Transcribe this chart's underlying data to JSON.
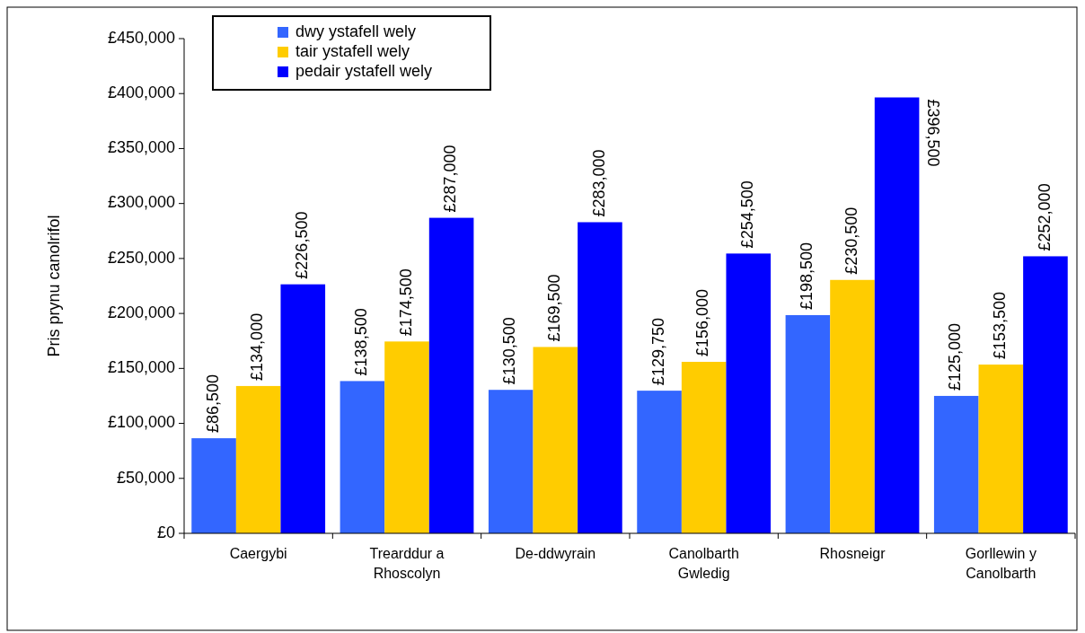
{
  "chart_data": {
    "type": "bar",
    "ylabel": "Pris prynu canolrifol",
    "categories": [
      "Caergybi",
      "Trearddur a Rhoscolyn",
      "De-ddwyrain",
      "Canolbarth Gwledig",
      "Rhosneigr",
      "Gorllewin y Canolbarth"
    ],
    "series": [
      {
        "name": "dwy ystafell wely",
        "color": "#3366ff",
        "values": [
          86500,
          138500,
          130500,
          129750,
          198500,
          125000
        ],
        "value_labels": [
          "£86,500",
          "£138,500",
          "£130,500",
          "£129,750",
          "£198,500",
          "£125,000"
        ]
      },
      {
        "name": "tair ystafell wely",
        "color": "#ffcc00",
        "values": [
          134000,
          174500,
          169500,
          156000,
          230500,
          153500
        ],
        "value_labels": [
          "£134,000",
          "£174,500",
          "£169,500",
          "£156,000",
          "£230,500",
          "£153,500"
        ]
      },
      {
        "name": "pedair ystafell wely",
        "color": "#0000ff",
        "values": [
          226500,
          287000,
          283000,
          254500,
          396500,
          252000
        ],
        "value_labels": [
          "£226,500",
          "£287,000",
          "£283,000",
          "£254,500",
          "£396,500",
          "£252,000"
        ]
      }
    ],
    "ylim": [
      0,
      450000
    ],
    "yticks": [
      {
        "value": 0,
        "label": "£0"
      },
      {
        "value": 50000,
        "label": "£50,000"
      },
      {
        "value": 100000,
        "label": "£100,000"
      },
      {
        "value": 150000,
        "label": "£150,000"
      },
      {
        "value": 200000,
        "label": "£200,000"
      },
      {
        "value": 250000,
        "label": "£250,000"
      },
      {
        "value": 300000,
        "label": "£300,000"
      },
      {
        "value": 350000,
        "label": "£350,000"
      },
      {
        "value": 400000,
        "label": "£400,000"
      },
      {
        "value": 450000,
        "label": "£450,000"
      }
    ],
    "legend": "top left",
    "grid": false
  }
}
